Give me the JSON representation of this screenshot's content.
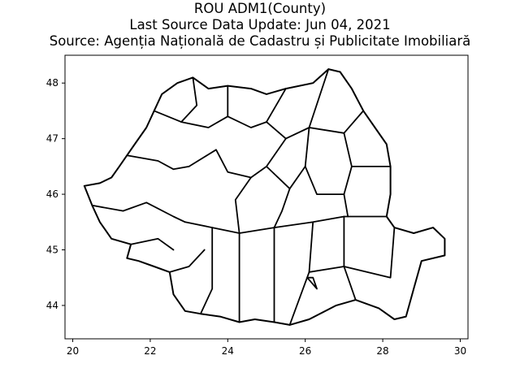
{
  "figure": {
    "title_lines": [
      "ROU ADM1(County)",
      "Last Source Data Update: Jun 04, 2021",
      "Source: Agenția Națională de Cadastru și Publicitate Imobiliară"
    ]
  },
  "chart_data": {
    "type": "map",
    "title": "ROU ADM1(County)",
    "subtitle": "Last Source Data Update: Jun 04, 2021 | Source: Agenția Națională de Cadastru și Publicitate Imobiliară",
    "xlim": [
      19.8,
      30.2
    ],
    "ylim": [
      43.4,
      48.5
    ],
    "x_ticks": [
      20,
      22,
      24,
      26,
      28,
      30
    ],
    "y_ticks": [
      44,
      45,
      46,
      47,
      48
    ],
    "x_tick_labels": [
      "20",
      "22",
      "24",
      "26",
      "28",
      "30"
    ],
    "y_tick_labels": [
      "44",
      "45",
      "46",
      "47",
      "48"
    ],
    "outline": [
      [
        20.3,
        46.15
      ],
      [
        20.7,
        46.2
      ],
      [
        21.0,
        46.3
      ],
      [
        21.2,
        46.5
      ],
      [
        21.4,
        46.7
      ],
      [
        21.6,
        46.9
      ],
      [
        21.9,
        47.2
      ],
      [
        22.1,
        47.5
      ],
      [
        22.3,
        47.8
      ],
      [
        22.7,
        48.0
      ],
      [
        23.1,
        48.1
      ],
      [
        23.5,
        47.9
      ],
      [
        24.0,
        47.95
      ],
      [
        24.6,
        47.9
      ],
      [
        25.0,
        47.8
      ],
      [
        25.5,
        47.9
      ],
      [
        26.2,
        48.0
      ],
      [
        26.6,
        48.25
      ],
      [
        26.9,
        48.2
      ],
      [
        27.2,
        47.9
      ],
      [
        27.5,
        47.5
      ],
      [
        27.8,
        47.2
      ],
      [
        28.1,
        46.9
      ],
      [
        28.2,
        46.5
      ],
      [
        28.2,
        46.0
      ],
      [
        28.1,
        45.6
      ],
      [
        28.3,
        45.4
      ],
      [
        28.8,
        45.3
      ],
      [
        29.3,
        45.4
      ],
      [
        29.6,
        45.2
      ],
      [
        29.6,
        44.9
      ],
      [
        29.0,
        44.8
      ],
      [
        28.8,
        44.3
      ],
      [
        28.6,
        43.8
      ],
      [
        28.3,
        43.75
      ],
      [
        27.9,
        43.95
      ],
      [
        27.3,
        44.1
      ],
      [
        26.8,
        44.0
      ],
      [
        26.1,
        43.75
      ],
      [
        25.6,
        43.65
      ],
      [
        25.2,
        43.7
      ],
      [
        24.7,
        43.75
      ],
      [
        24.3,
        43.7
      ],
      [
        23.8,
        43.8
      ],
      [
        23.3,
        43.85
      ],
      [
        22.9,
        43.9
      ],
      [
        22.6,
        44.2
      ],
      [
        22.5,
        44.6
      ],
      [
        22.1,
        44.7
      ],
      [
        21.7,
        44.8
      ],
      [
        21.4,
        44.85
      ],
      [
        21.5,
        45.1
      ],
      [
        21.0,
        45.2
      ],
      [
        20.7,
        45.5
      ],
      [
        20.5,
        45.8
      ],
      [
        20.3,
        46.15
      ]
    ],
    "county_borders": [
      [
        [
          21.4,
          46.7
        ],
        [
          22.2,
          46.6
        ],
        [
          22.6,
          46.45
        ],
        [
          23.0,
          46.5
        ]
      ],
      [
        [
          20.5,
          45.8
        ],
        [
          21.3,
          45.7
        ],
        [
          21.9,
          45.85
        ],
        [
          22.6,
          45.6
        ],
        [
          22.9,
          45.5
        ]
      ],
      [
        [
          21.5,
          45.1
        ],
        [
          22.2,
          45.2
        ],
        [
          22.6,
          45.0
        ]
      ],
      [
        [
          22.5,
          44.6
        ],
        [
          23.0,
          44.7
        ],
        [
          23.4,
          45.0
        ]
      ],
      [
        [
          22.9,
          45.5
        ],
        [
          23.6,
          45.4
        ],
        [
          24.3,
          45.3
        ],
        [
          25.2,
          45.4
        ],
        [
          26.2,
          45.5
        ],
        [
          27.0,
          45.6
        ],
        [
          28.1,
          45.6
        ]
      ],
      [
        [
          23.1,
          48.1
        ],
        [
          23.2,
          47.6
        ],
        [
          22.8,
          47.3
        ],
        [
          22.1,
          47.5
        ]
      ],
      [
        [
          22.8,
          47.3
        ],
        [
          23.5,
          47.2
        ],
        [
          24.0,
          47.4
        ],
        [
          24.0,
          47.95
        ]
      ],
      [
        [
          24.0,
          47.4
        ],
        [
          24.6,
          47.2
        ],
        [
          25.0,
          47.3
        ],
        [
          25.5,
          47.9
        ]
      ],
      [
        [
          25.0,
          47.3
        ],
        [
          25.5,
          47.0
        ],
        [
          26.1,
          47.2
        ],
        [
          26.6,
          48.25
        ]
      ],
      [
        [
          26.1,
          47.2
        ],
        [
          27.0,
          47.1
        ],
        [
          27.5,
          47.5
        ]
      ],
      [
        [
          27.0,
          47.1
        ],
        [
          27.2,
          46.5
        ],
        [
          28.2,
          46.5
        ]
      ],
      [
        [
          23.0,
          46.5
        ],
        [
          23.7,
          46.8
        ],
        [
          24.0,
          46.4
        ],
        [
          24.6,
          46.3
        ],
        [
          25.0,
          46.5
        ],
        [
          25.5,
          47.0
        ]
      ],
      [
        [
          24.6,
          46.3
        ],
        [
          24.2,
          45.9
        ],
        [
          24.3,
          45.3
        ]
      ],
      [
        [
          25.0,
          46.5
        ],
        [
          25.6,
          46.1
        ],
        [
          26.0,
          46.5
        ],
        [
          26.3,
          46.0
        ],
        [
          27.0,
          46.0
        ],
        [
          27.2,
          46.5
        ]
      ],
      [
        [
          25.6,
          46.1
        ],
        [
          25.4,
          45.7
        ],
        [
          25.2,
          45.4
        ]
      ],
      [
        [
          26.0,
          46.5
        ],
        [
          26.1,
          47.2
        ]
      ],
      [
        [
          27.0,
          46.0
        ],
        [
          27.1,
          45.6
        ]
      ],
      [
        [
          23.6,
          45.4
        ],
        [
          23.6,
          44.3
        ],
        [
          23.3,
          43.85
        ]
      ],
      [
        [
          24.3,
          45.3
        ],
        [
          24.3,
          43.7
        ]
      ],
      [
        [
          25.2,
          45.4
        ],
        [
          25.2,
          43.7
        ]
      ],
      [
        [
          26.2,
          45.5
        ],
        [
          26.1,
          44.6
        ],
        [
          25.6,
          43.65
        ]
      ],
      [
        [
          26.1,
          44.6
        ],
        [
          27.0,
          44.7
        ],
        [
          27.3,
          44.1
        ]
      ],
      [
        [
          27.0,
          44.7
        ],
        [
          27.0,
          45.6
        ]
      ],
      [
        [
          27.0,
          44.7
        ],
        [
          28.2,
          44.5
        ],
        [
          28.3,
          45.4
        ]
      ],
      [
        [
          26.05,
          44.5
        ],
        [
          26.3,
          44.3
        ],
        [
          26.2,
          44.5
        ],
        [
          26.05,
          44.5
        ]
      ]
    ]
  }
}
